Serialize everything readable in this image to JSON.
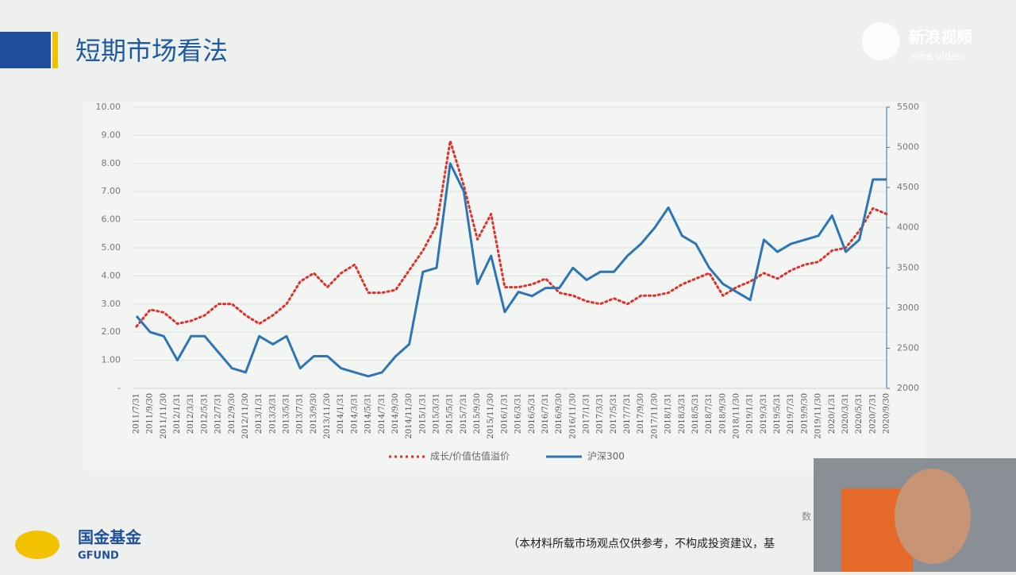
{
  "chart_data": {
    "type": "line",
    "title": "短期市场看法",
    "categories": [
      "2011/7/31",
      "2011/9/30",
      "2011/11/30",
      "2012/1/31",
      "2012/3/31",
      "2012/5/31",
      "2012/7/31",
      "2012/9/30",
      "2012/11/30",
      "2013/1/31",
      "2013/3/31",
      "2013/5/31",
      "2013/7/31",
      "2013/9/30",
      "2013/11/30",
      "2014/1/31",
      "2014/3/31",
      "2014/5/31",
      "2014/7/31",
      "2014/9/30",
      "2014/11/30",
      "2015/1/31",
      "2015/3/31",
      "2015/5/31",
      "2015/7/31",
      "2015/9/30",
      "2015/11/30",
      "2016/1/31",
      "2016/3/31",
      "2016/5/31",
      "2016/7/31",
      "2016/9/30",
      "2016/11/30",
      "2017/1/31",
      "2017/3/31",
      "2017/5/31",
      "2017/7/31",
      "2017/9/30",
      "2017/11/30",
      "2018/1/31",
      "2018/3/31",
      "2018/5/31",
      "2018/7/31",
      "2018/9/30",
      "2018/11/30",
      "2019/1/31",
      "2019/3/31",
      "2019/5/31",
      "2019/7/31",
      "2019/9/30",
      "2019/11/30",
      "2020/1/31",
      "2020/3/31",
      "2020/5/31",
      "2020/7/31",
      "2020/9/30"
    ],
    "series": [
      {
        "name": "成长/价值估值溢价",
        "color": "#e0302a",
        "values": [
          2.2,
          2.8,
          2.7,
          2.3,
          2.4,
          2.6,
          3.0,
          3.0,
          2.6,
          2.3,
          2.6,
          3.0,
          3.8,
          4.1,
          3.6,
          4.1,
          4.4,
          3.4,
          3.4,
          3.5,
          4.2,
          4.9,
          5.8,
          8.8,
          7.2,
          5.3,
          6.2,
          3.6,
          3.6,
          3.7,
          3.9,
          3.4,
          3.3,
          3.1,
          3.0,
          3.2,
          3.0,
          3.3,
          3.3,
          3.4,
          3.7,
          3.9,
          4.1,
          3.3,
          3.6,
          3.8,
          4.1,
          3.9,
          4.2,
          4.4,
          4.5,
          4.9,
          5.0,
          5.6,
          6.4,
          6.2
        ]
      },
      {
        "name": "沪深300",
        "color": "#2e75b6",
        "axis": "y2",
        "values": [
          2900,
          2700,
          2650,
          2350,
          2650,
          2650,
          2450,
          2250,
          2200,
          2650,
          2550,
          2650,
          2250,
          2400,
          2400,
          2250,
          2200,
          2150,
          2200,
          2400,
          2550,
          3450,
          3500,
          4800,
          4450,
          3300,
          3650,
          2950,
          3200,
          3150,
          3250,
          3250,
          3500,
          3350,
          3450,
          3450,
          3650,
          3800,
          4000,
          4250,
          3900,
          3800,
          3500,
          3300,
          3200,
          3100,
          3850,
          3700,
          3800,
          3850,
          3900,
          4150,
          3700,
          3850,
          4600,
          4600
        ]
      }
    ],
    "ylim": [
      0,
      10
    ],
    "yticks": [
      {
        "value": 0,
        "label": "-"
      },
      {
        "value": 1,
        "label": "1.00"
      },
      {
        "value": 2,
        "label": "2.00"
      },
      {
        "value": 3,
        "label": "3.00"
      },
      {
        "value": 4,
        "label": "4.00"
      },
      {
        "value": 5,
        "label": "5.00"
      },
      {
        "value": 6,
        "label": "6.00"
      },
      {
        "value": 7,
        "label": "7.00"
      },
      {
        "value": 8,
        "label": "8.00"
      },
      {
        "value": 9,
        "label": "9.00"
      },
      {
        "value": 10,
        "label": "10.00"
      }
    ],
    "y2lim": [
      2000,
      5500
    ],
    "y2ticks": [
      2000,
      2500,
      3000,
      3500,
      4000,
      4500,
      5000,
      5500
    ],
    "grid": true
  },
  "logo": {
    "name": "国金基金",
    "en": "GFUND"
  },
  "watermark": {
    "name": "新浪视频",
    "en": "sina video"
  },
  "footer": "（本材料所载市场观点仅供参考，不构成投资建议，基",
  "source": "数"
}
